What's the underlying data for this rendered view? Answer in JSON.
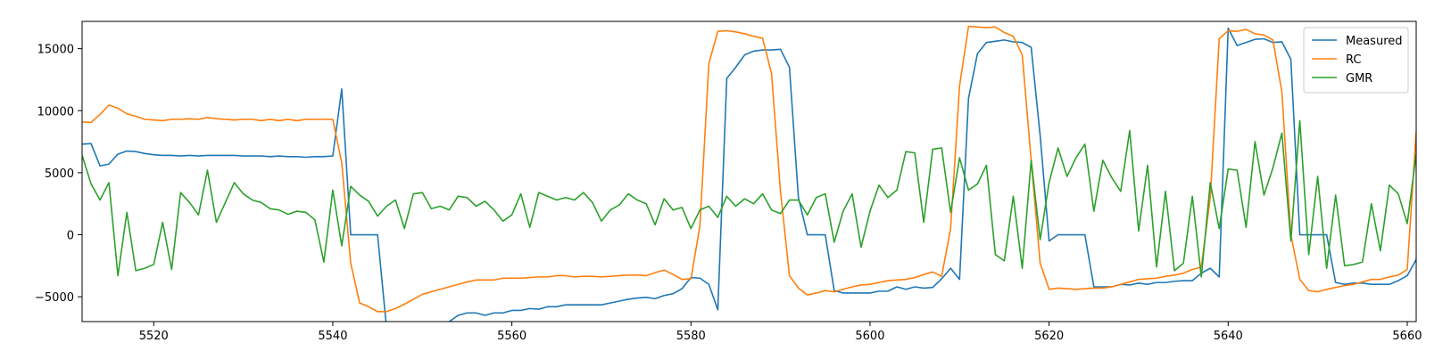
{
  "chart_data": {
    "type": "line",
    "title": "",
    "xlabel": "",
    "ylabel": "",
    "xlim": [
      5512,
      5661
    ],
    "ylim": [
      -7000,
      17200
    ],
    "x_start": 5512,
    "x_ticks": [
      5520,
      5540,
      5560,
      5580,
      5600,
      5620,
      5640,
      5660
    ],
    "y_ticks": [
      -5000,
      0,
      5000,
      10000,
      15000
    ],
    "x_tick_labels": [
      "5520",
      "5540",
      "5560",
      "5580",
      "5600",
      "5620",
      "5640",
      "5660"
    ],
    "y_tick_labels": [
      "−5000",
      "0",
      "5000",
      "10000",
      "15000"
    ],
    "grid": false,
    "legend_position": "top-right",
    "series": [
      {
        "name": "Measured",
        "color": "#1f77b4",
        "values": [
          7300,
          7350,
          5550,
          5700,
          6500,
          6750,
          6700,
          6550,
          6450,
          6400,
          6400,
          6350,
          6400,
          6350,
          6400,
          6400,
          6400,
          6400,
          6350,
          6350,
          6350,
          6300,
          6350,
          6300,
          6300,
          6250,
          6300,
          6300,
          6350,
          11750,
          0,
          0,
          0,
          0,
          -7500,
          -9000,
          -8500,
          -8000,
          -7800,
          -7500,
          -7200,
          -7000,
          -6500,
          -6300,
          -6300,
          -6500,
          -6300,
          -6300,
          -6100,
          -6100,
          -5950,
          -6000,
          -5800,
          -5800,
          -5650,
          -5650,
          -5650,
          -5650,
          -5650,
          -5500,
          -5350,
          -5200,
          -5100,
          -5050,
          -5150,
          -4900,
          -4750,
          -4350,
          -3450,
          -3500,
          -4000,
          -6050,
          12600,
          13500,
          14500,
          14800,
          14900,
          14900,
          14950,
          13500,
          3000,
          0,
          0,
          0,
          -4500,
          -4700,
          -4700,
          -4700,
          -4700,
          -4550,
          -4550,
          -4200,
          -4400,
          -4200,
          -4300,
          -4250,
          -3550,
          -2700,
          -3600,
          11000,
          14600,
          15500,
          15600,
          15700,
          15550,
          15500,
          15100,
          8000,
          -500,
          0,
          0,
          0,
          0,
          -4200,
          -4200,
          -4200,
          -4000,
          -4050,
          -3900,
          -4000,
          -3850,
          -3850,
          -3750,
          -3700,
          -3700,
          -3100,
          -2700,
          -3400,
          16650,
          15250,
          15500,
          15750,
          15800,
          15500,
          15550,
          14150,
          0,
          0,
          0,
          0,
          -3850,
          -4000,
          -3900,
          -3900,
          -4000,
          -4000,
          -4000,
          -3700,
          -3300,
          -2000,
          3300
        ]
      },
      {
        "name": "RC",
        "color": "#ff7f0e",
        "values": [
          9100,
          9050,
          9700,
          10450,
          10200,
          9750,
          9550,
          9300,
          9250,
          9200,
          9300,
          9300,
          9350,
          9300,
          9450,
          9350,
          9300,
          9250,
          9300,
          9300,
          9200,
          9300,
          9200,
          9300,
          9200,
          9300,
          9300,
          9300,
          9300,
          5800,
          -2300,
          -5500,
          -5800,
          -6200,
          -6200,
          -5950,
          -5600,
          -5200,
          -4800,
          -4600,
          -4400,
          -4200,
          -4000,
          -3800,
          -3650,
          -3650,
          -3650,
          -3500,
          -3500,
          -3500,
          -3450,
          -3400,
          -3400,
          -3300,
          -3300,
          -3400,
          -3350,
          -3350,
          -3400,
          -3350,
          -3300,
          -3250,
          -3250,
          -3300,
          -3050,
          -2850,
          -3200,
          -3600,
          -3550,
          700,
          13800,
          16400,
          16450,
          16350,
          16200,
          16000,
          15850,
          13000,
          3500,
          -3300,
          -4300,
          -4850,
          -4700,
          -4500,
          -4600,
          -4400,
          -4200,
          -4050,
          -4000,
          -3850,
          -3700,
          -3650,
          -3600,
          -3450,
          -3200,
          -3000,
          -3350,
          500,
          12000,
          16800,
          16750,
          16700,
          16750,
          16300,
          16000,
          14500,
          6000,
          -2300,
          -4400,
          -4300,
          -4350,
          -4400,
          -4350,
          -4300,
          -4300,
          -4200,
          -4000,
          -3800,
          -3600,
          -3550,
          -3500,
          -3350,
          -3250,
          -3100,
          -2800,
          -2600,
          3000,
          15800,
          16450,
          16400,
          16550,
          16200,
          16100,
          15700,
          11500,
          0,
          -3600,
          -4500,
          -4600,
          -4400,
          -4250,
          -4100,
          -4000,
          -3800,
          -3600,
          -3600,
          -3400,
          -3250,
          -2800,
          8300
        ]
      },
      {
        "name": "GMR",
        "color": "#2ca02c",
        "values": [
          6400,
          4100,
          2800,
          4200,
          -3300,
          1800,
          -2900,
          -2700,
          -2400,
          1000,
          -2800,
          3400,
          2600,
          1600,
          5200,
          1000,
          2600,
          4200,
          3300,
          2800,
          2600,
          2100,
          2000,
          1650,
          1900,
          1800,
          1200,
          -2200,
          3600,
          -900,
          3900,
          3200,
          2700,
          1500,
          2300,
          2800,
          500,
          3300,
          3400,
          2100,
          2300,
          2000,
          3100,
          3000,
          2300,
          2700,
          2000,
          1100,
          1600,
          3300,
          600,
          3400,
          3100,
          2800,
          3000,
          2800,
          3400,
          2600,
          1100,
          2000,
          2400,
          3300,
          2800,
          2500,
          800,
          2900,
          2000,
          2200,
          500,
          2000,
          2300,
          1400,
          3100,
          2300,
          2900,
          2500,
          3300,
          2000,
          1700,
          2800,
          2800,
          1600,
          3000,
          3300,
          -600,
          1900,
          3300,
          -1000,
          1900,
          4000,
          3000,
          3600,
          6700,
          6600,
          1000,
          6900,
          7000,
          1800,
          6200,
          3600,
          4100,
          5600,
          -1600,
          -2100,
          3100,
          -2700,
          6000,
          -400,
          4200,
          7000,
          4700,
          6200,
          7300,
          1900,
          6000,
          4600,
          3500,
          8400,
          300,
          5600,
          -2600,
          3500,
          -2900,
          -2300,
          3100,
          -3400,
          4200,
          500,
          5300,
          5200,
          600,
          7500,
          3200,
          5400,
          8200,
          -500,
          9200,
          -1600,
          4700,
          -2700,
          3200,
          -2500,
          -2400,
          -2200,
          2500,
          -1300,
          4000,
          3300,
          900,
          6500
        ]
      }
    ]
  }
}
